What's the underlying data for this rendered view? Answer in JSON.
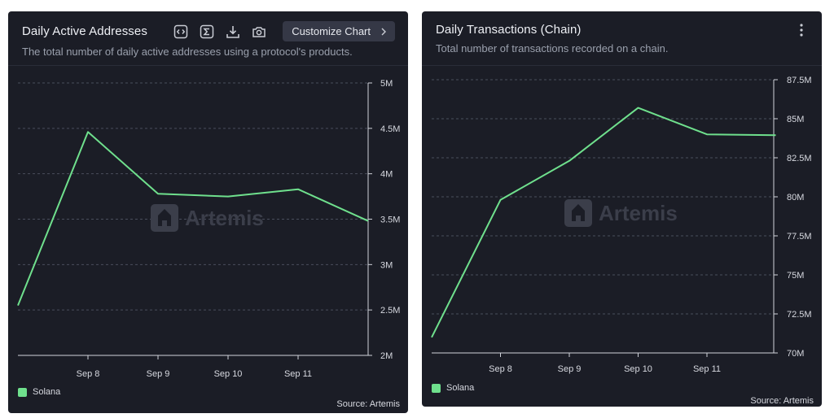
{
  "panels": [
    {
      "title": "Daily Active Addresses",
      "subtitle": "The total number of daily active addresses using a protocol's products.",
      "toolbar": {
        "icons": [
          "embed-code-icon",
          "sigma-icon",
          "download-icon",
          "camera-icon"
        ],
        "customize_label": "Customize Chart"
      },
      "watermark": "Artemis",
      "legend_label": "Solana",
      "source": "Source: Artemis"
    },
    {
      "title": "Daily Transactions (Chain)",
      "subtitle": "Total number of transactions recorded on a chain.",
      "menu_icon": "more-vertical-icon",
      "watermark": "Artemis",
      "legend_label": "Solana",
      "source": "Source: Artemis"
    }
  ],
  "colors": {
    "panel_bg": "#1b1d26",
    "series": "#6fe08d",
    "grid": "#4a4e5c",
    "axis": "#d0d3da"
  },
  "chart_data": [
    {
      "type": "line",
      "title": "Daily Active Addresses",
      "x_ticks": [
        "Sep 8",
        "Sep 9",
        "Sep 10",
        "Sep 11"
      ],
      "y_ticks": [
        "2M",
        "2.5M",
        "3M",
        "3.5M",
        "4M",
        "4.5M",
        "5M"
      ],
      "y_tick_values": [
        2000000,
        2500000,
        3000000,
        3500000,
        4000000,
        4500000,
        5000000
      ],
      "ylim": [
        2000000,
        5000000
      ],
      "x": [
        "Sep 7",
        "Sep 8",
        "Sep 9",
        "Sep 10",
        "Sep 11",
        "Sep 12"
      ],
      "series": [
        {
          "name": "Solana",
          "values": [
            2550000,
            4460000,
            3780000,
            3750000,
            3830000,
            3480000
          ]
        }
      ],
      "grid": true,
      "legend": "bottom-left"
    },
    {
      "type": "line",
      "title": "Daily Transactions (Chain)",
      "x_ticks": [
        "Sep 8",
        "Sep 9",
        "Sep 10",
        "Sep 11"
      ],
      "y_ticks": [
        "70M",
        "72.5M",
        "75M",
        "77.5M",
        "80M",
        "82.5M",
        "85M",
        "87.5M"
      ],
      "y_tick_values": [
        70000000,
        72500000,
        75000000,
        77500000,
        80000000,
        82500000,
        85000000,
        87500000
      ],
      "ylim": [
        70000000,
        87500000
      ],
      "x": [
        "Sep 7",
        "Sep 8",
        "Sep 9",
        "Sep 10",
        "Sep 11",
        "Sep 12"
      ],
      "series": [
        {
          "name": "Solana",
          "values": [
            71000000,
            79800000,
            82300000,
            85700000,
            84000000,
            83950000
          ]
        }
      ],
      "grid": true,
      "legend": "bottom-left"
    }
  ]
}
